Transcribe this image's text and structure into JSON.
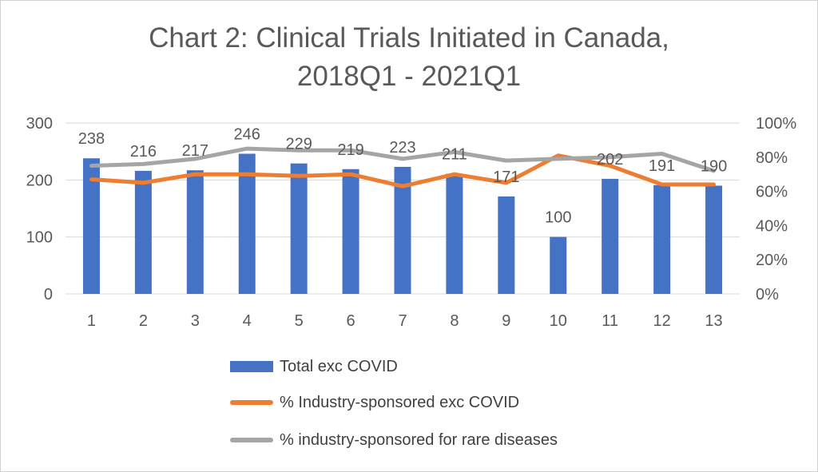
{
  "chart_data": {
    "type": "bar+line",
    "title_lines": [
      "Chart 2: Clinical Trials Initiated in Canada,",
      "2018Q1 - 2021Q1"
    ],
    "categories": [
      "1",
      "2",
      "3",
      "4",
      "5",
      "6",
      "7",
      "8",
      "9",
      "10",
      "11",
      "12",
      "13"
    ],
    "left_axis": {
      "range": [
        0,
        300
      ],
      "ticks": [
        "0",
        "100",
        "200",
        "300"
      ]
    },
    "right_axis": {
      "range": [
        0,
        100
      ],
      "ticks": [
        "0%",
        "20%",
        "40%",
        "60%",
        "80%",
        "100%"
      ]
    },
    "series": [
      {
        "name": "Total exc COVID",
        "kind": "bar",
        "axis": "left",
        "color": "#4472C4",
        "values": [
          238,
          216,
          217,
          246,
          229,
          219,
          223,
          211,
          171,
          100,
          202,
          191,
          190
        ],
        "labels": [
          "238",
          "216",
          "217",
          "246",
          "229",
          "219",
          "223",
          "211",
          "171",
          "100",
          "202",
          "191",
          "190"
        ]
      },
      {
        "name": "% Industry-sponsored exc COVID",
        "kind": "line",
        "axis": "right",
        "color": "#ED7D31",
        "values": [
          67,
          65,
          70,
          70,
          69,
          70,
          63,
          70,
          65,
          81,
          75,
          64,
          64
        ]
      },
      {
        "name": "% industry-sponsored for rare diseases",
        "kind": "line",
        "axis": "right",
        "color": "#A5A5A5",
        "values": [
          75,
          76,
          79,
          85,
          84,
          84,
          79,
          83,
          78,
          79,
          80,
          82,
          72
        ]
      }
    ],
    "gridlines": true,
    "legend_position": "bottom"
  }
}
